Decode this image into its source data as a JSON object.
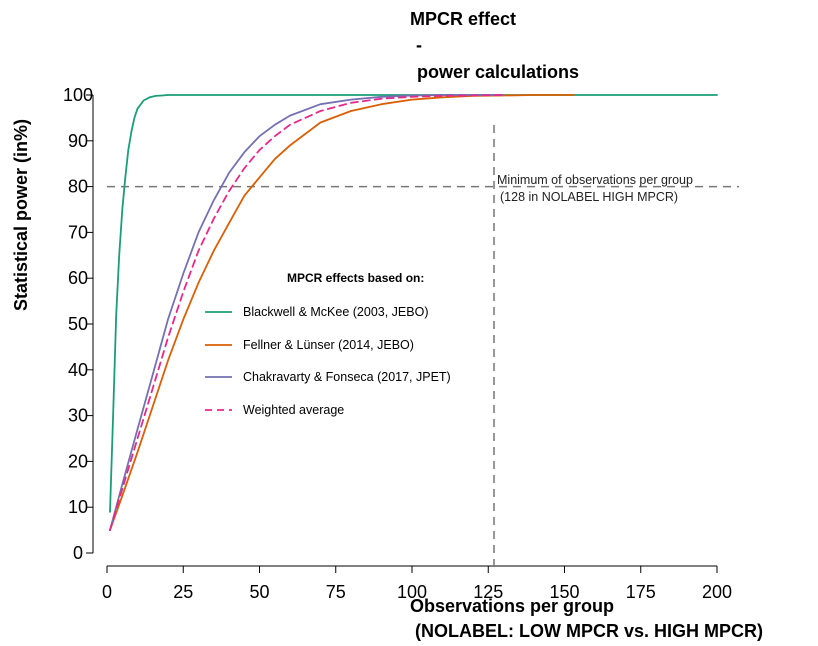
{
  "chart_data": {
    "type": "line",
    "title": [
      "MPCR effect",
      "-",
      "power calculations"
    ],
    "xlabel": [
      "Observations per group",
      "(NOLABEL: LOW MPCR vs. HIGH MPCR)"
    ],
    "ylabel": "Statistical power (in%)",
    "xlim": [
      0,
      200
    ],
    "ylim": [
      0,
      100
    ],
    "xticks": [
      0,
      25,
      50,
      75,
      100,
      125,
      150,
      175,
      200
    ],
    "yticks": [
      0,
      10,
      20,
      30,
      40,
      50,
      60,
      70,
      80,
      90,
      100
    ],
    "grid": false,
    "legend": {
      "title": "MPCR effects based on:",
      "placement": "center"
    },
    "reference_lines": [
      {
        "axis": "y",
        "value": 80,
        "style": "dashed",
        "color": "#777777"
      },
      {
        "axis": "x",
        "value": 128,
        "style": "dashed",
        "color": "#777777"
      }
    ],
    "annotation": [
      "Minimum of observations per group",
      "(128 in NOLABEL HIGH MPCR)"
    ],
    "series": [
      {
        "name": "Blackwell & McKee (2003, JEBO)",
        "color": "#1b9e77",
        "style": "solid",
        "x": [
          1,
          2,
          3,
          4,
          5,
          6,
          7,
          8,
          9,
          10,
          12,
          14,
          16,
          18,
          20,
          25,
          200
        ],
        "y": [
          9,
          30,
          52,
          65,
          75,
          82,
          88,
          92,
          95,
          97,
          98.8,
          99.5,
          99.8,
          99.9,
          100,
          100,
          100
        ]
      },
      {
        "name": "Fellner & Lünser (2014, JEBO)",
        "color": "#d95f02",
        "style": "solid",
        "x": [
          1,
          5,
          10,
          15,
          20,
          25,
          30,
          35,
          40,
          45,
          50,
          55,
          60,
          70,
          80,
          90,
          100,
          110,
          120,
          130,
          140,
          153
        ],
        "y": [
          5,
          12.5,
          22,
          32,
          42,
          51,
          59,
          66,
          72,
          78,
          82,
          86,
          89,
          94,
          96.5,
          98,
          99,
          99.5,
          99.8,
          99.9,
          100,
          100
        ]
      },
      {
        "name": "Chakravarty & Fonseca (2017, JPET)",
        "color": "#7570b3",
        "style": "solid",
        "x": [
          1,
          5,
          10,
          15,
          20,
          25,
          30,
          35,
          40,
          45,
          50,
          55,
          60,
          70,
          80,
          90,
          100,
          110,
          120,
          130
        ],
        "y": [
          5,
          15,
          27,
          39,
          51,
          61,
          70,
          77,
          83,
          87.5,
          91,
          93.5,
          95.5,
          98,
          99,
          99.6,
          99.9,
          100,
          100,
          100
        ]
      },
      {
        "name": "Weighted average",
        "color": "#e7298a",
        "style": "dashed",
        "x": [
          1,
          5,
          10,
          15,
          20,
          25,
          30,
          35,
          40,
          45,
          50,
          55,
          60,
          70,
          80,
          90,
          100,
          110,
          120,
          130
        ],
        "y": [
          5,
          14,
          25,
          36,
          47,
          57,
          66,
          73,
          79,
          84,
          88,
          91,
          93.5,
          96.5,
          98.3,
          99.2,
          99.6,
          99.8,
          99.9,
          100
        ]
      }
    ]
  }
}
